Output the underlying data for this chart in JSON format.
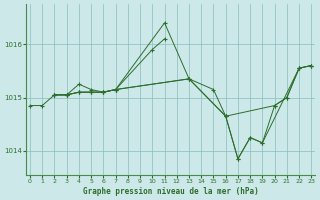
{
  "background_color": "#cce8e8",
  "plot_bg_color": "#cce8e8",
  "grid_color": "#8bbcbc",
  "line_color": "#2d6e2d",
  "marker_color": "#2d6e2d",
  "xlabel": "Graphe pression niveau de la mer (hPa)",
  "yticks": [
    1014,
    1015,
    1016
  ],
  "xticks": [
    0,
    1,
    2,
    3,
    4,
    5,
    6,
    7,
    8,
    9,
    10,
    11,
    12,
    13,
    14,
    15,
    16,
    17,
    18,
    19,
    20,
    21,
    22,
    23
  ],
  "xlim": [
    -0.3,
    23.3
  ],
  "ylim": [
    1013.55,
    1016.75
  ],
  "series": [
    {
      "x": [
        0,
        1,
        2,
        3,
        4,
        5,
        6,
        7,
        11,
        13,
        16,
        17,
        18,
        19,
        22,
        23
      ],
      "y": [
        1014.85,
        1014.85,
        1015.05,
        1015.05,
        1015.1,
        1015.1,
        1015.1,
        1015.15,
        1016.4,
        1015.35,
        1014.65,
        1013.85,
        1014.25,
        1014.15,
        1015.55,
        1015.6
      ]
    },
    {
      "x": [
        2,
        3,
        4,
        5,
        6,
        7,
        10,
        11
      ],
      "y": [
        1015.05,
        1015.05,
        1015.25,
        1015.15,
        1015.1,
        1015.15,
        1015.9,
        1016.1
      ]
    },
    {
      "x": [
        2,
        3,
        4,
        5,
        6,
        7,
        13,
        15,
        16,
        20,
        21,
        22,
        23
      ],
      "y": [
        1015.05,
        1015.05,
        1015.1,
        1015.1,
        1015.1,
        1015.15,
        1015.35,
        1015.15,
        1014.65,
        1014.85,
        1015.0,
        1015.55,
        1015.6
      ]
    },
    {
      "x": [
        2,
        3,
        4,
        5,
        6,
        7,
        13,
        16,
        17,
        18,
        19,
        20,
        21,
        22,
        23
      ],
      "y": [
        1015.05,
        1015.05,
        1015.1,
        1015.1,
        1015.1,
        1015.15,
        1015.35,
        1014.65,
        1013.85,
        1014.25,
        1014.15,
        1014.85,
        1015.0,
        1015.55,
        1015.6
      ]
    }
  ]
}
